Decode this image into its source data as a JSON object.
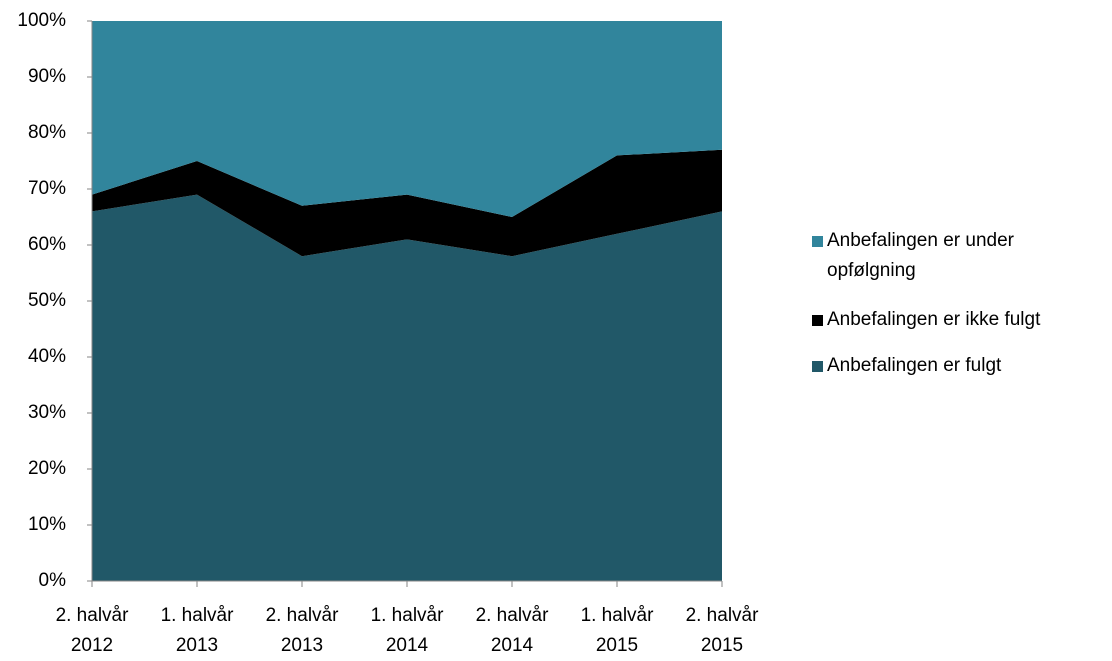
{
  "chart_data": {
    "type": "stacked-area",
    "categories": [
      "2. halvår 2012",
      "1. halvår 2013",
      "2. halvår 2013",
      "1. halvår 2014",
      "2. halvår 2014",
      "1. halvår 2015",
      "2. halvår 2015"
    ],
    "series": [
      {
        "name": "Anbefalingen er fulgt",
        "color": "#215868",
        "values": [
          66,
          69,
          58,
          61,
          58,
          62,
          66
        ]
      },
      {
        "name": "Anbefalingen er ikke fulgt",
        "color": "#000000",
        "values": [
          3,
          6,
          9,
          8,
          7,
          14,
          11
        ]
      },
      {
        "name": "Anbefalingen er under opfølgning",
        "color": "#31859c",
        "values": [
          31,
          25,
          33,
          31,
          35,
          24,
          23
        ]
      }
    ],
    "ylim": [
      0,
      100
    ],
    "yticks": [
      {
        "value": 0,
        "label": "0%"
      },
      {
        "value": 10,
        "label": "10%"
      },
      {
        "value": 20,
        "label": "20%"
      },
      {
        "value": 30,
        "label": "30%"
      },
      {
        "value": 40,
        "label": "40%"
      },
      {
        "value": 50,
        "label": "50%"
      },
      {
        "value": 60,
        "label": "60%"
      },
      {
        "value": 70,
        "label": "70%"
      },
      {
        "value": 80,
        "label": "80%"
      },
      {
        "value": 90,
        "label": "90%"
      },
      {
        "value": 100,
        "label": "100%"
      }
    ],
    "legend": "right"
  }
}
